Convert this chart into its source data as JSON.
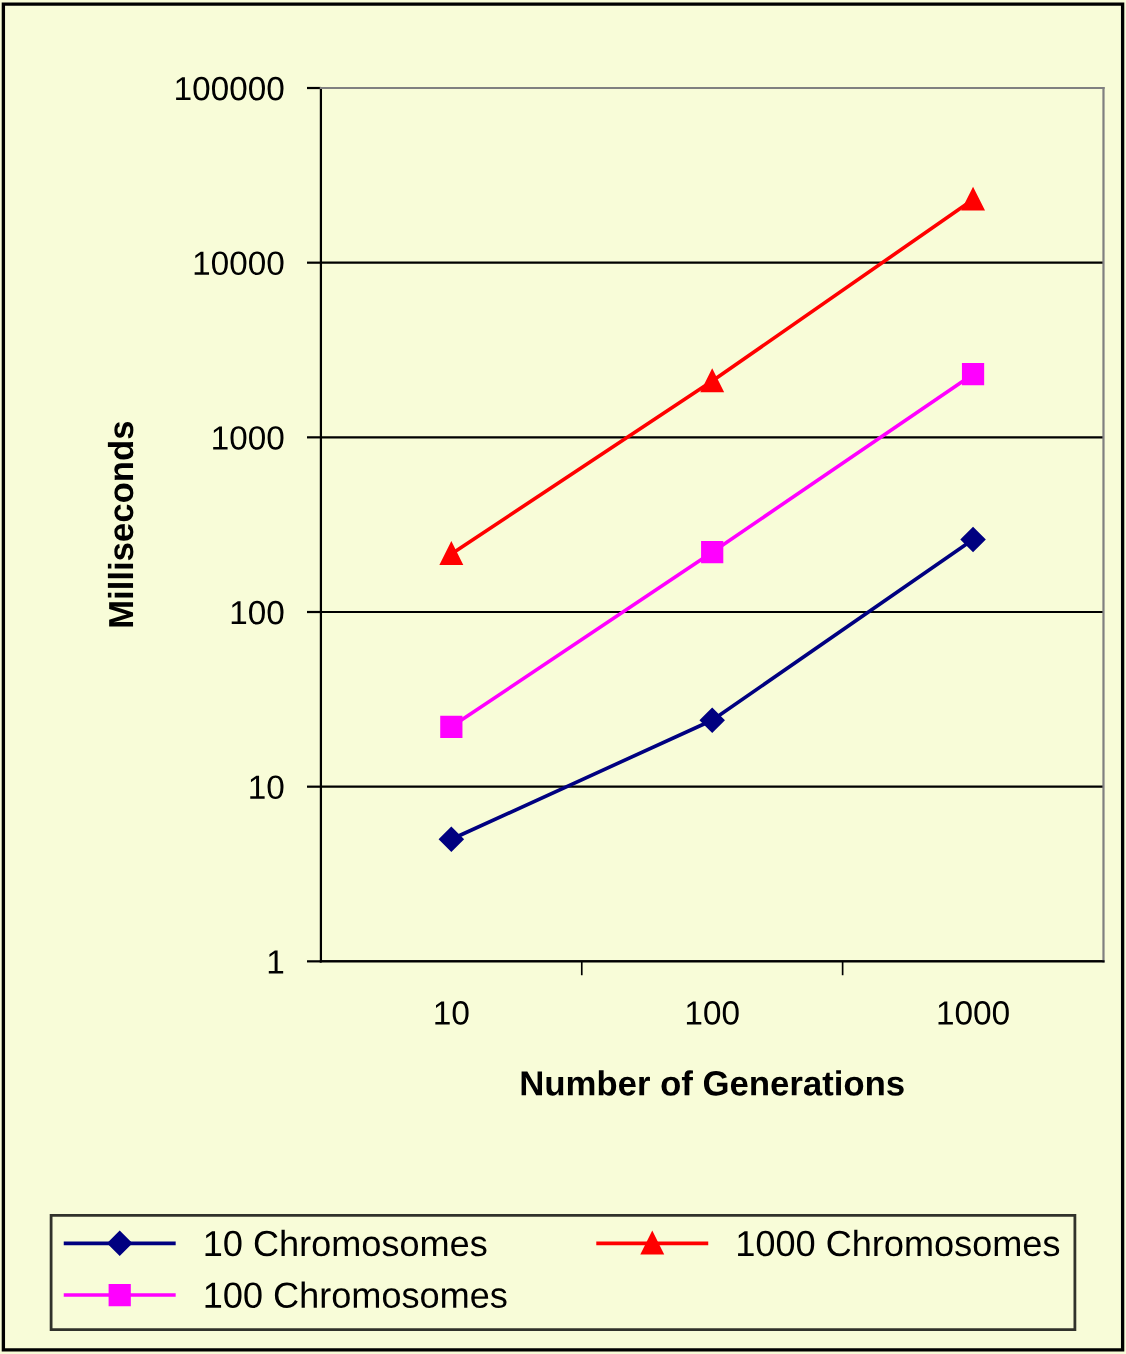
{
  "chart_data": {
    "type": "line",
    "xlabel": "Number of Generations",
    "ylabel": "Milliseconds",
    "categories": [
      "10",
      "100",
      "1000"
    ],
    "series": [
      {
        "name": "10 Chromosomes",
        "color": "#000080",
        "values": [
          5,
          24,
          260
        ],
        "marker": "diamond"
      },
      {
        "name": "100 Chromosomes",
        "color": "#ff00ff",
        "values": [
          22,
          220,
          2300
        ],
        "marker": "square"
      },
      {
        "name": "1000 Chromosomes",
        "color": "#ff0000",
        "values": [
          215,
          2100,
          23000
        ],
        "marker": "triangle"
      }
    ],
    "log": "y",
    "ylim": [
      1,
      100000
    ],
    "yticks": [
      1,
      10,
      100,
      1000,
      10000,
      100000
    ],
    "grid": "y",
    "legend": "bottom"
  }
}
